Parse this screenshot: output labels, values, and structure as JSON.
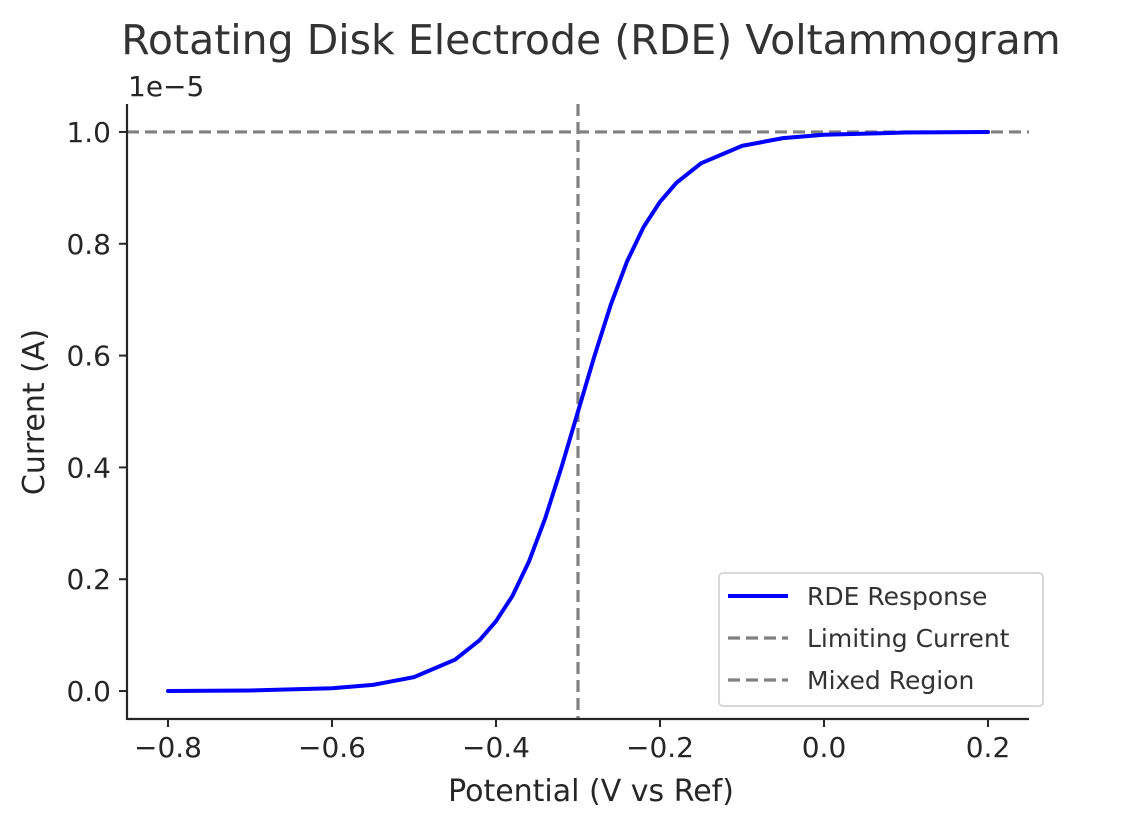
{
  "chart_data": {
    "type": "line",
    "title": "Rotating Disk Electrode (RDE) Voltammogram",
    "xlabel": "Potential (V vs Ref)",
    "ylabel": "Current (A)",
    "y_offset_label": "1e−5",
    "y_scale_factor": 1e-05,
    "xlim": [
      -0.85,
      0.25
    ],
    "ylim": [
      -0.05,
      1.05
    ],
    "x_ticks": [
      -0.8,
      -0.6,
      -0.4,
      -0.2,
      0.0,
      0.2
    ],
    "x_tick_labels": [
      "−0.8",
      "−0.6",
      "−0.4",
      "−0.2",
      "0.0",
      "0.2"
    ],
    "y_ticks": [
      0.0,
      0.2,
      0.4,
      0.6,
      0.8,
      1.0
    ],
    "y_tick_labels": [
      "0.0",
      "0.2",
      "0.4",
      "0.6",
      "0.8",
      "1.0"
    ],
    "grid": false,
    "legend_position": "lower-right",
    "series": [
      {
        "name": "RDE Response",
        "style": "solid",
        "color": "#0000ff",
        "x": [
          -0.8,
          -0.7,
          -0.6,
          -0.55,
          -0.5,
          -0.45,
          -0.42,
          -0.4,
          -0.38,
          -0.36,
          -0.34,
          -0.32,
          -0.3,
          -0.28,
          -0.26,
          -0.24,
          -0.22,
          -0.2,
          -0.18,
          -0.15,
          -0.1,
          -0.05,
          0.0,
          0.1,
          0.2
        ],
        "y": [
          0.0,
          0.001,
          0.005,
          0.011,
          0.025,
          0.056,
          0.091,
          0.125,
          0.17,
          0.231,
          0.309,
          0.401,
          0.5,
          0.599,
          0.691,
          0.769,
          0.83,
          0.875,
          0.909,
          0.944,
          0.975,
          0.989,
          0.995,
          0.999,
          1.0
        ]
      },
      {
        "name": "Limiting Current",
        "style": "dashed",
        "color": "#808080",
        "orientation": "horizontal",
        "value": 1.0
      },
      {
        "name": "Mixed Region",
        "style": "dashed",
        "color": "#808080",
        "orientation": "vertical",
        "value": -0.3
      }
    ]
  }
}
